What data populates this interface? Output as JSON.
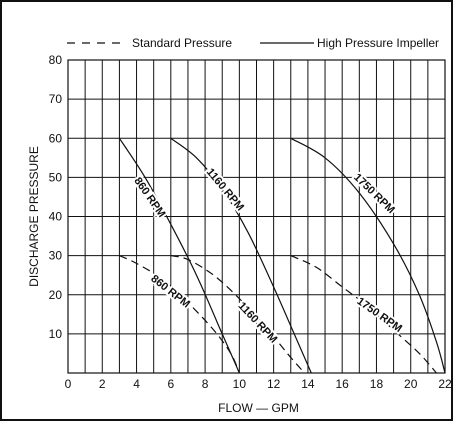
{
  "chart_data": {
    "type": "line",
    "title": "",
    "xlabel": "FLOW — GPM",
    "ylabel": "DISCHARGE PRESSURE",
    "xlim": [
      0,
      22
    ],
    "ylim": [
      0,
      80
    ],
    "x_ticks": [
      "0",
      "2",
      "4",
      "6",
      "8",
      "10",
      "12",
      "14",
      "16",
      "18",
      "20",
      "22"
    ],
    "y_ticks": [
      "10",
      "20",
      "30",
      "40",
      "50",
      "60",
      "70",
      "80"
    ],
    "grid": true,
    "legend": {
      "position": "top",
      "entries": [
        {
          "label": "Standard Pressure",
          "style": "dashed"
        },
        {
          "label": "High Pressure Impeller",
          "style": "solid"
        }
      ]
    },
    "series": [
      {
        "group": "High Pressure Impeller",
        "label": "860 RPM",
        "style": "solid",
        "x": [
          3.0,
          4.5,
          6.0,
          7.5,
          9.0,
          10.0
        ],
        "y": [
          60,
          50,
          38,
          25,
          10,
          0
        ]
      },
      {
        "group": "High Pressure Impeller",
        "label": "1160 RPM",
        "style": "solid",
        "x": [
          6.0,
          7.5,
          9.0,
          10.5,
          12.0,
          13.2,
          14.2
        ],
        "y": [
          60,
          55,
          47,
          36,
          22,
          10,
          0
        ]
      },
      {
        "group": "High Pressure Impeller",
        "label": "1750 RPM",
        "style": "solid",
        "x": [
          13.0,
          15.0,
          17.0,
          19.0,
          20.5,
          21.5,
          22.0
        ],
        "y": [
          60,
          55,
          46,
          33,
          20,
          8,
          0
        ]
      },
      {
        "group": "Standard Pressure",
        "label": "860 RPM",
        "style": "dashed",
        "x": [
          3.0,
          4.0,
          5.5,
          7.0,
          8.5,
          9.5,
          10.0
        ],
        "y": [
          30,
          28,
          24,
          18,
          11,
          5,
          0
        ]
      },
      {
        "group": "Standard Pressure",
        "label": "1160 RPM",
        "style": "dashed",
        "x": [
          6.0,
          7.0,
          8.5,
          10.0,
          11.5,
          12.8,
          13.8
        ],
        "y": [
          30,
          29,
          25,
          19,
          12,
          5,
          0
        ]
      },
      {
        "group": "Standard Pressure",
        "label": "1750 RPM",
        "style": "dashed",
        "x": [
          13.0,
          14.5,
          16.0,
          17.5,
          19.0,
          20.5,
          21.5
        ],
        "y": [
          30,
          27,
          22,
          17,
          11,
          5,
          0
        ]
      }
    ]
  }
}
